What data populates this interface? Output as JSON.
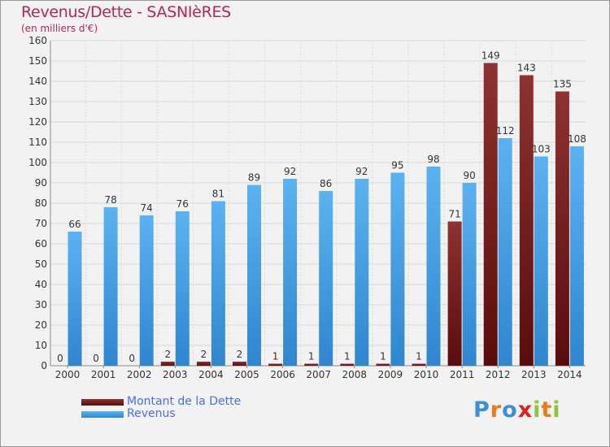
{
  "chart_data": {
    "type": "bar",
    "title": "Revenus/Dette - SASNIèRES",
    "subtitle": "(en milliers d'€)",
    "categories": [
      "2000",
      "2001",
      "2002",
      "2003",
      "2004",
      "2005",
      "2006",
      "2007",
      "2008",
      "2009",
      "2010",
      "2011",
      "2012",
      "2013",
      "2014"
    ],
    "series": [
      {
        "name": "Montant de la Dette",
        "color": "#7a1c1c",
        "values": [
          0,
          0,
          0,
          2,
          2,
          2,
          1,
          1,
          1,
          1,
          1,
          71,
          149,
          143,
          135
        ]
      },
      {
        "name": "Revenus",
        "color": "#4aa3e6",
        "values": [
          66,
          78,
          74,
          76,
          81,
          89,
          92,
          86,
          92,
          95,
          98,
          90,
          112,
          103,
          108
        ]
      }
    ],
    "yticks": [
      0,
      10,
      20,
      30,
      40,
      50,
      60,
      70,
      80,
      90,
      100,
      110,
      120,
      130,
      140,
      150,
      160
    ],
    "ylim": [
      0,
      160
    ],
    "grid": true,
    "legend_position": "bottom-left"
  },
  "logo": {
    "letters": [
      "P",
      "r",
      "o",
      "x",
      "i",
      "t",
      "i"
    ],
    "colors": [
      "#3a8fd8",
      "#f07a1a",
      "#3a8fd8",
      "#e02020",
      "#8dc63f",
      "#f07a1a",
      "#8dc63f"
    ]
  }
}
